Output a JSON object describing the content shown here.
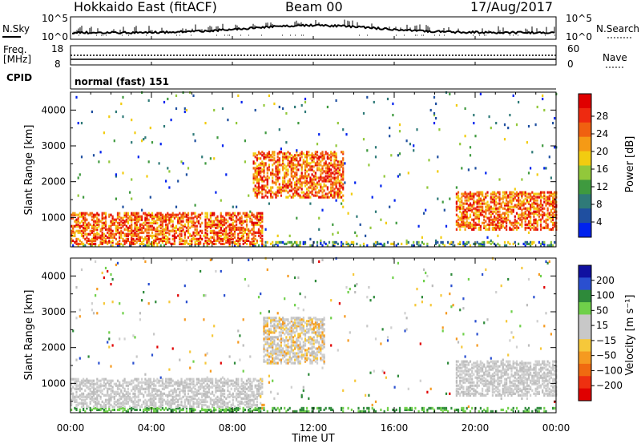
{
  "header": {
    "radar": "Hokkaido East (fitACF)",
    "beam": "Beam 00",
    "date": "17/Aug/2017"
  },
  "top_panel": {
    "nsky_label": "N.Sky",
    "nsky_ticks": [
      "10^5",
      "10^0"
    ],
    "nsearch_label": "N.Search",
    "nsearch_ticks": [
      "10^5",
      "10^0"
    ],
    "freq_label": "Freq.",
    "freq_unit": "[MHz]",
    "freq_ticks": [
      "18",
      "8"
    ],
    "nave_label": "Nave",
    "nave_ticks": [
      "60",
      "0"
    ],
    "cpid_label": "CPID",
    "cpid_value": "normal (fast) 151"
  },
  "axes": {
    "ylabel": "Slant Range [km]",
    "xlabel": "Time UT",
    "y_ticks": [
      "1000",
      "2000",
      "3000",
      "4000"
    ],
    "x_ticks": [
      "00:00",
      "04:00",
      "08:00",
      "12:00",
      "16:00",
      "20:00",
      "00:00"
    ]
  },
  "colorbars": {
    "power": {
      "label": "Power [dB]",
      "ticks": [
        "4",
        "8",
        "12",
        "16",
        "20",
        "24",
        "28"
      ],
      "colors": [
        "#0022ee",
        "#1f4fa0",
        "#2f7a78",
        "#3f9a3f",
        "#92c83a",
        "#f2cc10",
        "#f59a15",
        "#f06010",
        "#ee2a10",
        "#e00000"
      ]
    },
    "velocity": {
      "label": "Velocity [m s⁻¹]",
      "ticks": [
        "200",
        "100",
        "50",
        "15",
        "−15",
        "−50",
        "−100",
        "−200"
      ],
      "colors": [
        "#1010a0",
        "#2a4fd0",
        "#2e8a3a",
        "#6fd04a",
        "#c8c8c8",
        "#c8c8c8",
        "#f6c83a",
        "#f59a20",
        "#f06a10",
        "#ee3010",
        "#e00000"
      ]
    }
  },
  "chart_data": [
    {
      "type": "heatmap",
      "title": "Power [dB]",
      "x_range": [
        "00:00",
        "24:00"
      ],
      "ylim": [
        180,
        4500
      ],
      "approx_echo_regions": [
        {
          "time": [
            "00:00",
            "09:30"
          ],
          "range_km": [
            200,
            1100
          ],
          "value": "24–30 dB"
        },
        {
          "time": [
            "09:00",
            "13:30"
          ],
          "range_km": [
            1500,
            2800
          ],
          "value": "16–28 dB"
        },
        {
          "time": [
            "19:00",
            "24:00"
          ],
          "range_km": [
            600,
            1700
          ],
          "value": "16–26 dB"
        }
      ]
    },
    {
      "type": "heatmap",
      "title": "Velocity [m s⁻¹]",
      "x_range": [
        "00:00",
        "24:00"
      ],
      "ylim": [
        180,
        4500
      ],
      "approx_echo_regions": [
        {
          "time": [
            "00:00",
            "09:30"
          ],
          "range_km": [
            200,
            1100
          ],
          "value": "−15 to 15 m/s"
        },
        {
          "time": [
            "09:30",
            "12:30"
          ],
          "range_km": [
            1500,
            2800
          ],
          "value": "−15 to −100 m/s"
        },
        {
          "time": [
            "19:00",
            "24:00"
          ],
          "range_km": [
            600,
            1600
          ],
          "value": "−15 to 15 m/s"
        }
      ]
    }
  ]
}
